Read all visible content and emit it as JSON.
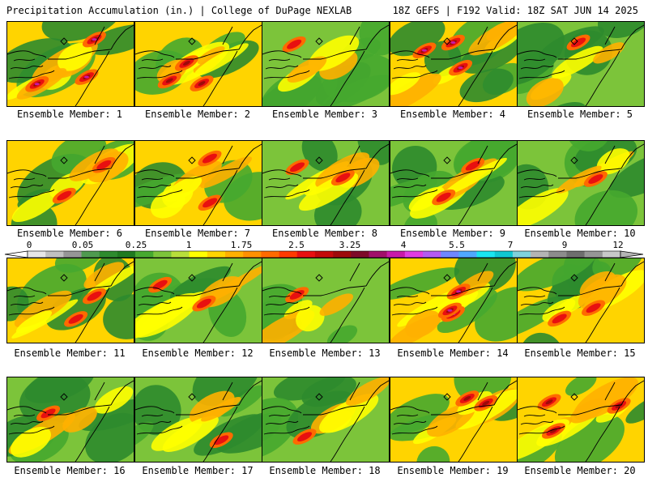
{
  "header": {
    "left_title": "Precipitation Accumulation (in.) | College of DuPage NEXLAB",
    "right_title": "18Z GEFS | F192 Valid: 18Z SAT JUN 14 2025"
  },
  "colorbar": {
    "labels": [
      "0",
      "0.05",
      "0.25",
      "1",
      "1.75",
      "2.5",
      "3.25",
      "4",
      "5.5",
      "7",
      "9",
      "12"
    ],
    "colors": [
      "#e6e6e6",
      "#c0c0c0",
      "#969696",
      "#4f9a4f",
      "#2e8b2e",
      "#1f7a1f",
      "#46a92f",
      "#7cc43a",
      "#b8df3a",
      "#ffff00",
      "#ffd400",
      "#ffb000",
      "#ff9000",
      "#ff6a00",
      "#ff3a00",
      "#e81010",
      "#c40a0a",
      "#9e0a0a",
      "#7d0a28",
      "#a0106a",
      "#c81aa8",
      "#e03ce0",
      "#b45af0",
      "#6f87ff",
      "#4fa8ff",
      "#19e6f0",
      "#0fc8d2",
      "#7fd2dc",
      "#b4b4b4",
      "#8c8c8c",
      "#6e6e6e",
      "#969696",
      "#c8c8c8"
    ]
  },
  "members": [
    {
      "label": "Ensemble Member: 1",
      "intensity": 0.85
    },
    {
      "label": "Ensemble Member: 2",
      "intensity": 0.75
    },
    {
      "label": "Ensemble Member: 3",
      "intensity": 0.45
    },
    {
      "label": "Ensemble Member: 4",
      "intensity": 0.85
    },
    {
      "label": "Ensemble Member: 5",
      "intensity": 0.35
    },
    {
      "label": "Ensemble Member: 6",
      "intensity": 0.6
    },
    {
      "label": "Ensemble Member: 7",
      "intensity": 0.6
    },
    {
      "label": "Ensemble Member: 8",
      "intensity": 0.5
    },
    {
      "label": "Ensemble Member: 9",
      "intensity": 0.5
    },
    {
      "label": "Ensemble Member: 10",
      "intensity": 0.35
    },
    {
      "label": "Ensemble Member: 11",
      "intensity": 0.65
    },
    {
      "label": "Ensemble Member: 12",
      "intensity": 0.55
    },
    {
      "label": "Ensemble Member: 13",
      "intensity": 0.3
    },
    {
      "label": "Ensemble Member: 14",
      "intensity": 0.95
    },
    {
      "label": "Ensemble Member: 15",
      "intensity": 0.6
    },
    {
      "label": "Ensemble Member: 16",
      "intensity": 0.35
    },
    {
      "label": "Ensemble Member: 17",
      "intensity": 0.4
    },
    {
      "label": "Ensemble Member: 18",
      "intensity": 0.35
    },
    {
      "label": "Ensemble Member: 19",
      "intensity": 0.7
    },
    {
      "label": "Ensemble Member: 20",
      "intensity": 0.75
    }
  ]
}
